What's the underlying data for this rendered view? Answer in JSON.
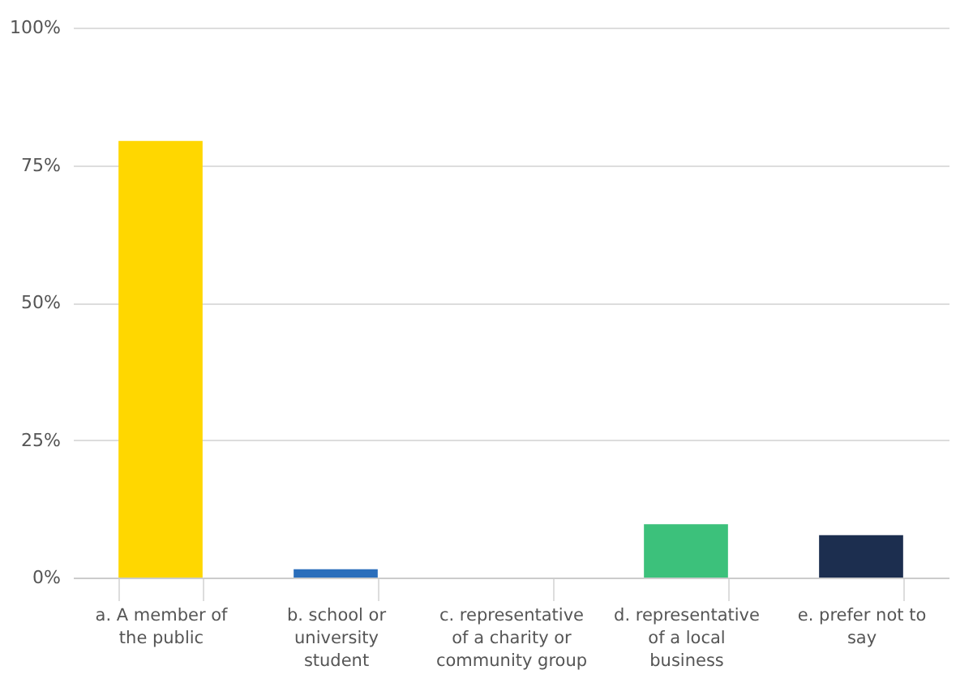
{
  "chart_data": {
    "type": "bar",
    "categories": [
      "a. A member of the public",
      "b. school or university student",
      "c. representative of a charity or community group",
      "d. representative of a local business",
      "e. prefer not to say"
    ],
    "values": [
      79.4,
      1.5,
      0,
      9.7,
      7.7
    ],
    "colors": [
      "#ffd700",
      "#2a6ebb",
      "#3cc17b",
      "#3cc17b",
      "#1c2e4f"
    ],
    "ylim": [
      0,
      100
    ],
    "yticks": [
      {
        "value": 0,
        "label": "0%"
      },
      {
        "value": 25,
        "label": "25%"
      },
      {
        "value": 50,
        "label": "50%"
      },
      {
        "value": 75,
        "label": "75%"
      },
      {
        "value": 100,
        "label": "100%"
      }
    ],
    "grid": "y"
  }
}
